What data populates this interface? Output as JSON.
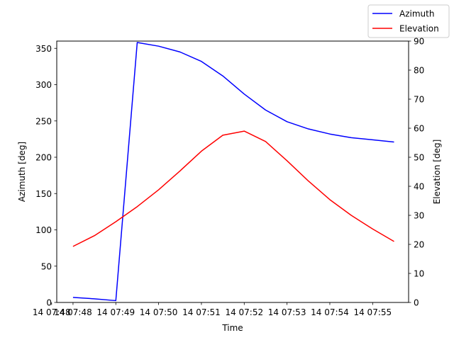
{
  "chart_data": {
    "type": "line",
    "xlabel": "Time",
    "ylabel_left": "Azimuth [deg]",
    "ylabel_right": "Elevation [deg]",
    "x_ticks": [
      "14 07:48",
      "14 07:48",
      "14 07:49",
      "14 07:50",
      "14 07:51",
      "14 07:52",
      "14 07:53",
      "14 07:54",
      "14 07:55"
    ],
    "x_tick_minutes": [
      47.5,
      48.0,
      49.0,
      50.0,
      51.0,
      52.0,
      53.0,
      54.0,
      55.0
    ],
    "ylim_left": [
      0,
      360
    ],
    "yticks_left": [
      0,
      50,
      100,
      150,
      200,
      250,
      300,
      350
    ],
    "ylim_right": [
      0,
      90
    ],
    "yticks_right": [
      0,
      10,
      20,
      30,
      40,
      50,
      60,
      70,
      80,
      90
    ],
    "x_minutes": [
      48.0,
      48.5,
      49.0,
      49.5,
      50.0,
      50.5,
      51.0,
      51.5,
      52.0,
      52.5,
      53.0,
      53.5,
      54.0,
      54.5,
      55.0,
      55.5
    ],
    "xlim_minutes": [
      47.62,
      55.84
    ],
    "series": [
      {
        "name": "Azimuth",
        "axis": "left",
        "color": "#0000ff",
        "values": [
          7,
          5,
          2.5,
          358,
          353,
          345,
          332,
          312,
          287,
          265,
          249,
          239,
          232,
          227,
          224,
          221
        ]
      },
      {
        "name": "Elevation",
        "axis": "right",
        "color": "#ff0000",
        "values": [
          19.3,
          23,
          27.8,
          33,
          38.8,
          45.3,
          52.1,
          57.6,
          59,
          55.4,
          48.8,
          41.8,
          35.4,
          30,
          25.3,
          21
        ]
      }
    ],
    "legend_position": "top-right"
  }
}
